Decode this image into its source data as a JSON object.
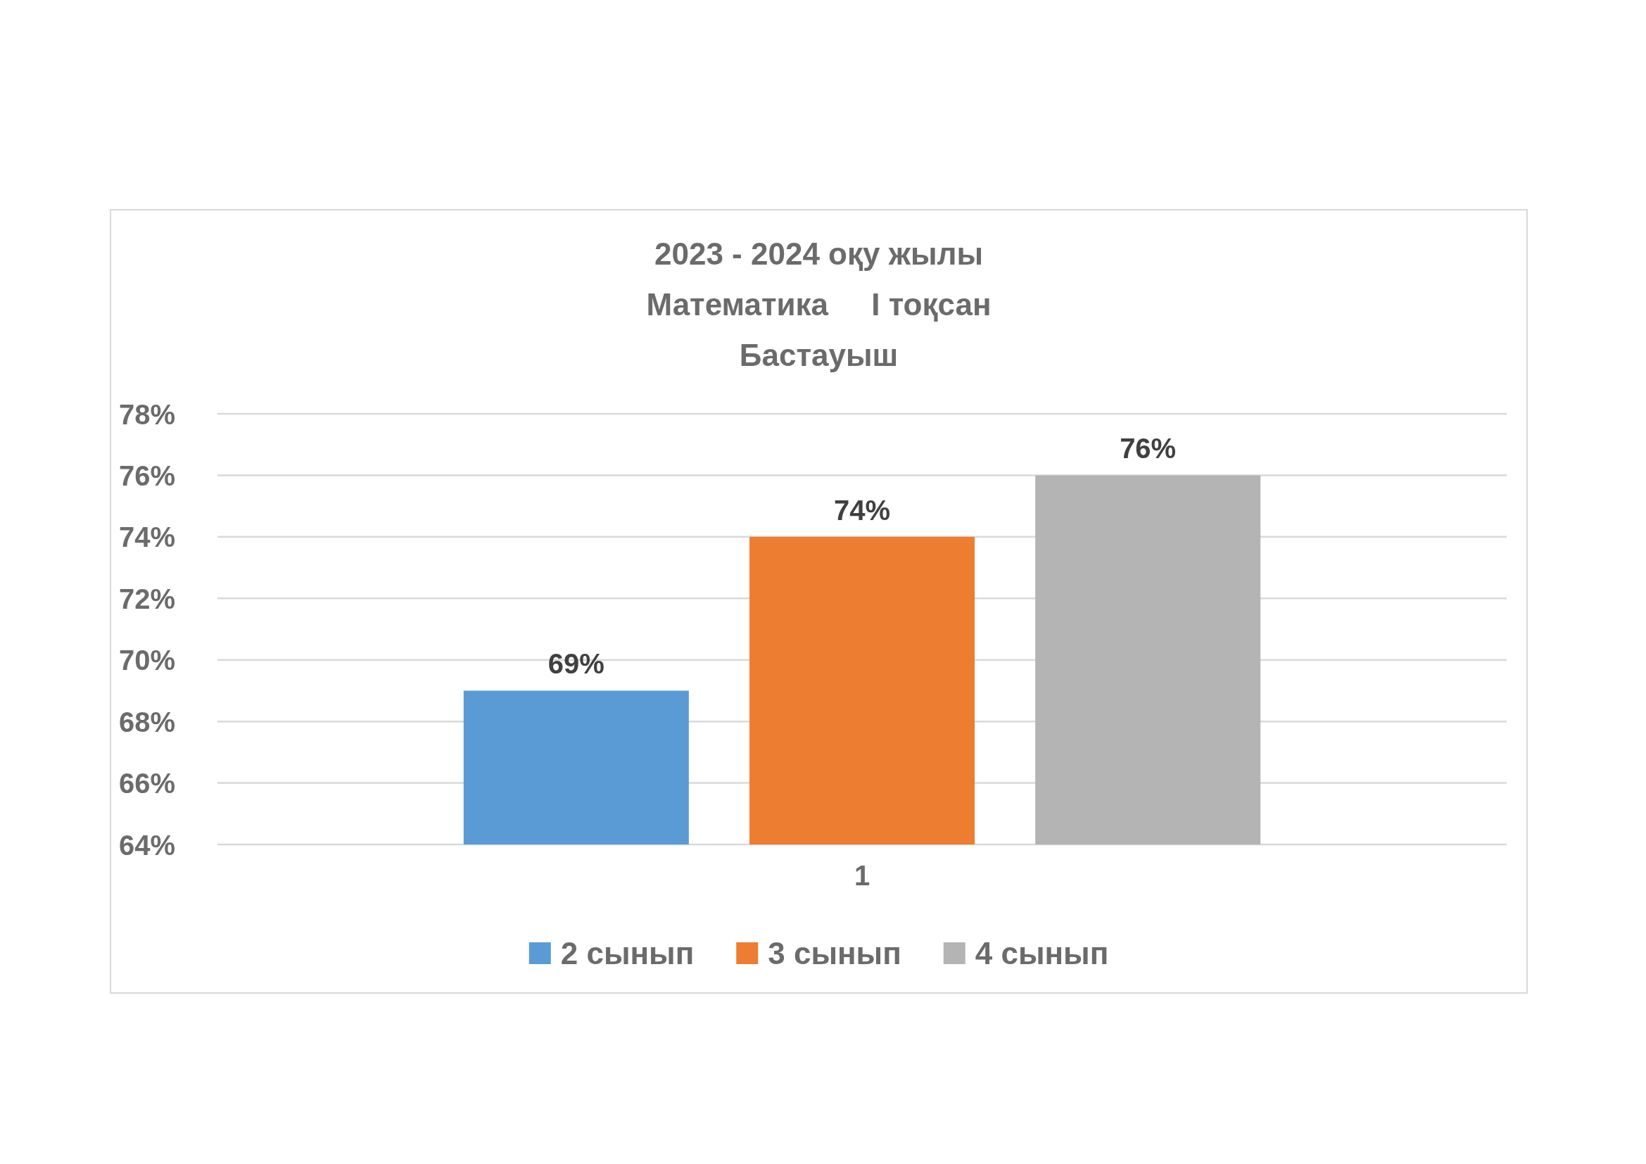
{
  "chart_data": {
    "type": "bar",
    "title": "2023 - 2024 оқу жылы\nМатематика     I тоқсан\nБастауыш",
    "categories": [
      "1"
    ],
    "series": [
      {
        "name": "2 сынып",
        "color": "#5b9bd5",
        "values": [
          69
        ],
        "value_labels": [
          "69%"
        ]
      },
      {
        "name": "3 сынып",
        "color": "#ed7d31",
        "values": [
          74
        ],
        "value_labels": [
          "74%"
        ]
      },
      {
        "name": "4 сынып",
        "color": "#b4b4b4",
        "values": [
          76
        ],
        "value_labels": [
          "76%"
        ]
      }
    ],
    "ylim": [
      64,
      78
    ],
    "yticks": [
      {
        "value": 64,
        "label": "64%"
      },
      {
        "value": 66,
        "label": "66%"
      },
      {
        "value": 68,
        "label": "68%"
      },
      {
        "value": 70,
        "label": "70%"
      },
      {
        "value": 72,
        "label": "72%"
      },
      {
        "value": 74,
        "label": "74%"
      },
      {
        "value": 76,
        "label": "76%"
      },
      {
        "value": 78,
        "label": "78%"
      }
    ],
    "grid": "y",
    "legend": "bottom"
  }
}
